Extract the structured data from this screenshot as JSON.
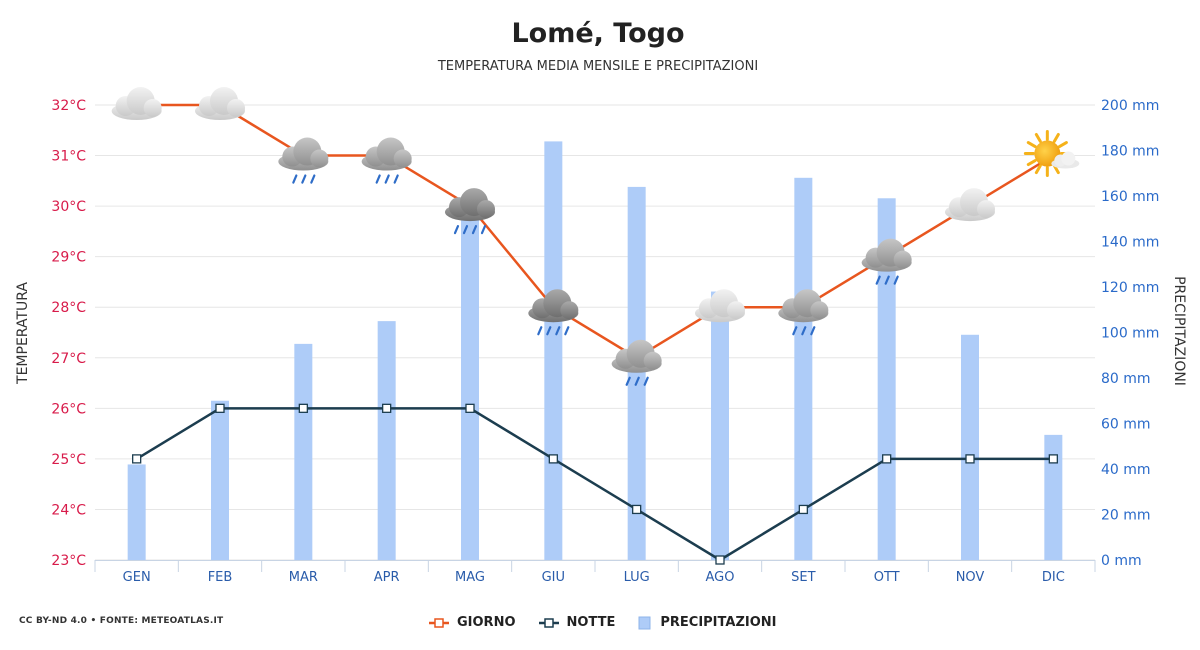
{
  "header": {
    "title": "Lomé, Togo",
    "subtitle": "TEMPERATURA MEDIA MENSILE E PRECIPITAZIONI"
  },
  "footer": {
    "credit": "CC BY-ND 4.0 • FONTE: METEOATLAS.IT"
  },
  "legend": {
    "day": "GIORNO",
    "night": "NOTTE",
    "precip": "PRECIPITAZIONI"
  },
  "colors": {
    "day_line": "#e8561f",
    "night_line": "#1c3d4f",
    "precip_bar": "#aeccf8",
    "left_axis_text": "#d81b4a",
    "right_axis_text": "#2a6ac9",
    "x_axis_text": "#2a5caa",
    "grid": "#e6e6e6"
  },
  "chart_data": {
    "type": "line+bar",
    "categories": [
      "GEN",
      "FEB",
      "MAR",
      "APR",
      "MAG",
      "GIU",
      "LUG",
      "AGO",
      "SET",
      "OTT",
      "NOV",
      "DIC"
    ],
    "series": [
      {
        "name": "GIORNO",
        "axis": "left",
        "values": [
          32,
          32,
          31,
          31,
          30,
          28,
          27,
          28,
          28,
          29,
          30,
          31
        ]
      },
      {
        "name": "NOTTE",
        "axis": "left",
        "values": [
          25,
          26,
          26,
          26,
          26,
          25,
          24,
          23,
          24,
          25,
          25,
          25
        ]
      },
      {
        "name": "PRECIPITAZIONI",
        "axis": "right",
        "type": "bar",
        "values": [
          42,
          70,
          95,
          105,
          150,
          184,
          164,
          118,
          168,
          159,
          99,
          55
        ]
      }
    ],
    "weather_icons": [
      "cloudy",
      "cloudy",
      "rain",
      "rain",
      "heavy-rain",
      "heavy-rain",
      "rain",
      "cloudy",
      "rain",
      "rain",
      "cloudy",
      "sun-cloud"
    ],
    "y_left": {
      "label": "TEMPERATURA",
      "min": 23,
      "max": 32,
      "ticks": [
        "23°C",
        "24°C",
        "25°C",
        "26°C",
        "27°C",
        "28°C",
        "29°C",
        "30°C",
        "31°C",
        "32°C"
      ]
    },
    "y_right": {
      "label": "PRECIPITAZIONI",
      "min": 0,
      "max": 200,
      "ticks": [
        "0 mm",
        "20 mm",
        "40 mm",
        "60 mm",
        "80 mm",
        "100 mm",
        "120 mm",
        "140 mm",
        "160 mm",
        "180 mm",
        "200 mm"
      ]
    },
    "grid": true,
    "legend_position": "bottom"
  }
}
